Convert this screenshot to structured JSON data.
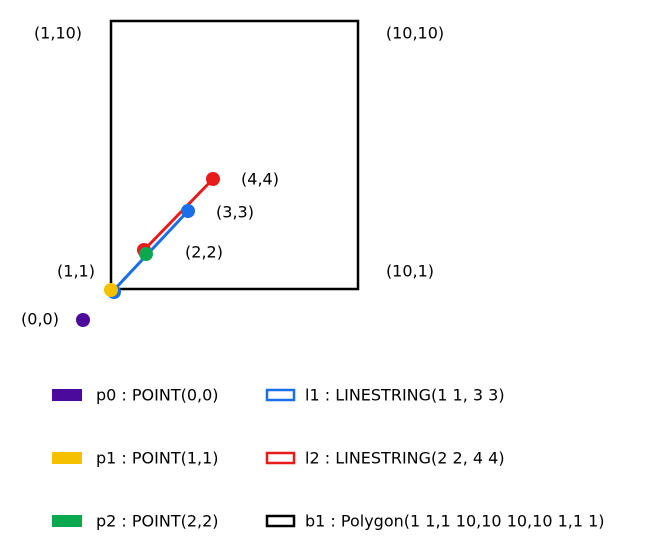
{
  "coordinate_labels": [
    "(1,10)",
    "(10,10)",
    "(1,1)",
    "(10,1)",
    "(0,0)",
    "(4,4)",
    "(3,3)",
    "(2,2)"
  ],
  "legend": [
    {
      "label": "p0 : POINT(0,0)"
    },
    {
      "label": "p1 : POINT(1,1)"
    },
    {
      "label": "p2 : POINT(2,2)"
    },
    {
      "label": "l1 : LINESTRING(1 1, 3 3)"
    },
    {
      "label": "l2 : LINESTRING(2 2, 4 4)"
    },
    {
      "label": "b1 : Polygon(1 1,1 10,10 10,10 1,1 1)"
    }
  ]
}
